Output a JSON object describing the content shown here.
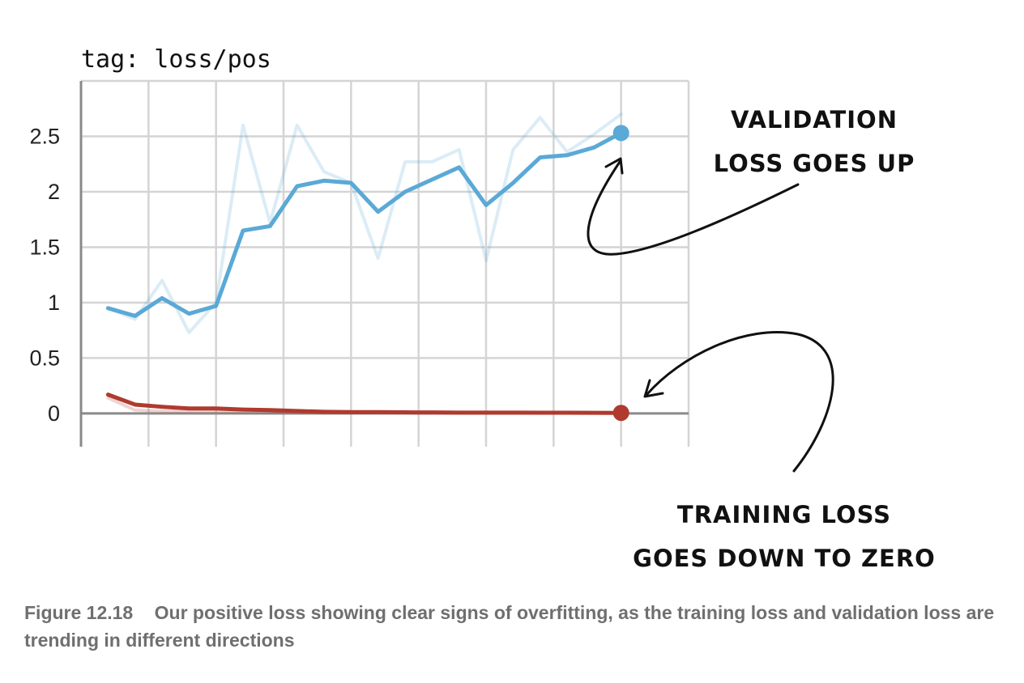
{
  "chart_data": {
    "type": "line",
    "title": "tag: loss/pos",
    "x": [
      1,
      2,
      3,
      4,
      5,
      6,
      7,
      8,
      9,
      10,
      11,
      12,
      13,
      14,
      15,
      16,
      17,
      18,
      19,
      20
    ],
    "xlim": [
      0,
      22.5
    ],
    "ylim": [
      -0.3,
      3.0
    ],
    "yticks": [
      0,
      0.5,
      1,
      1.5,
      2,
      2.5
    ],
    "ytick_labels": [
      "0",
      "0.5",
      "1",
      "1.5",
      "2",
      "2.5"
    ],
    "grid": true,
    "series": [
      {
        "color": "#5aa9d6",
        "style": "smoothed",
        "values": [
          0.95,
          0.88,
          1.04,
          0.9,
          0.97,
          1.65,
          1.69,
          2.05,
          2.1,
          2.08,
          1.82,
          2.0,
          2.11,
          2.22,
          1.88,
          2.08,
          2.31,
          2.33,
          2.4,
          2.53
        ]
      },
      {
        "color": "#5aa9d6",
        "style": "raw",
        "values": [
          0.95,
          0.85,
          1.2,
          0.73,
          1.0,
          2.6,
          1.72,
          2.6,
          2.18,
          2.08,
          1.4,
          2.27,
          2.27,
          2.38,
          1.38,
          2.38,
          2.67,
          2.36,
          2.52,
          2.7
        ]
      },
      {
        "color": "#b03a2e",
        "style": "smoothed",
        "values": [
          0.17,
          0.08,
          0.06,
          0.045,
          0.045,
          0.035,
          0.03,
          0.022,
          0.015,
          0.012,
          0.012,
          0.01,
          0.009,
          0.008,
          0.008,
          0.008,
          0.007,
          0.007,
          0.006,
          0.005
        ]
      },
      {
        "color": "#b03a2e",
        "style": "raw",
        "values": [
          0.14,
          0.03,
          0.02,
          0.02,
          0.02,
          0.015,
          0.012,
          0.01,
          0.008,
          0.008,
          0.007,
          0.007,
          0.006,
          0.006,
          0.006,
          0.005,
          0.005,
          0.005,
          0.005,
          0.004
        ]
      }
    ]
  },
  "annotations": {
    "validation_line1": "VALIDATION",
    "validation_line2": "LOSS GOES UP",
    "training_line1": "TRAINING LOSS",
    "training_line2": "GOES DOWN TO ZERO"
  },
  "caption": {
    "label": "Figure 12.18",
    "text": "Our positive loss showing clear signs of overfitting, as the training loss and validation loss are trending in different directions"
  }
}
